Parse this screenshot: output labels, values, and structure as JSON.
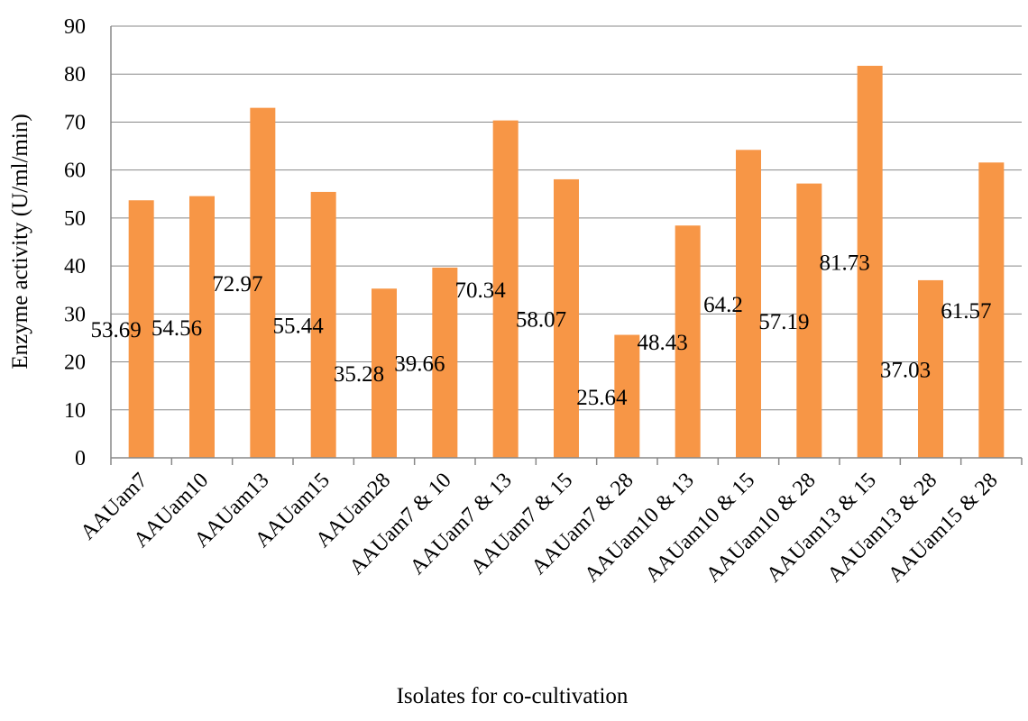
{
  "chart_data": {
    "type": "bar",
    "title": "",
    "xlabel": "Isolates for co-cultivation",
    "ylabel": "Enzyme activity (U/ml/min)",
    "ylim": [
      0,
      90
    ],
    "yticks": [
      0,
      10,
      20,
      30,
      40,
      50,
      60,
      70,
      80,
      90
    ],
    "grid": true,
    "legend": "none",
    "bar_color": "#F79646",
    "categories": [
      "AAUam7",
      "AAUam10",
      "AAUam13",
      "AAUam15",
      "AAUam28",
      "AAUam7 & 10",
      "AAUam7 & 13",
      "AAUam7 & 15",
      "AAUam7 & 28",
      "AAUam10 & 13",
      "AAUam10 & 15",
      "AAUam10 & 28",
      "AAUam13 & 15",
      "AAUam13 & 28",
      "AAUam15 & 28"
    ],
    "values": [
      53.69,
      54.56,
      72.97,
      55.44,
      35.28,
      39.66,
      70.34,
      58.07,
      25.64,
      48.43,
      64.2,
      57.19,
      81.73,
      37.03,
      61.57
    ],
    "data_labels": [
      "53.69",
      "54.56",
      "72.97",
      "55.44",
      "35.28",
      "39.66",
      "70.34",
      "58.07",
      "25.64",
      "48.43",
      "64.2",
      "57.19",
      "81.73",
      "37.03",
      "61.57"
    ]
  }
}
